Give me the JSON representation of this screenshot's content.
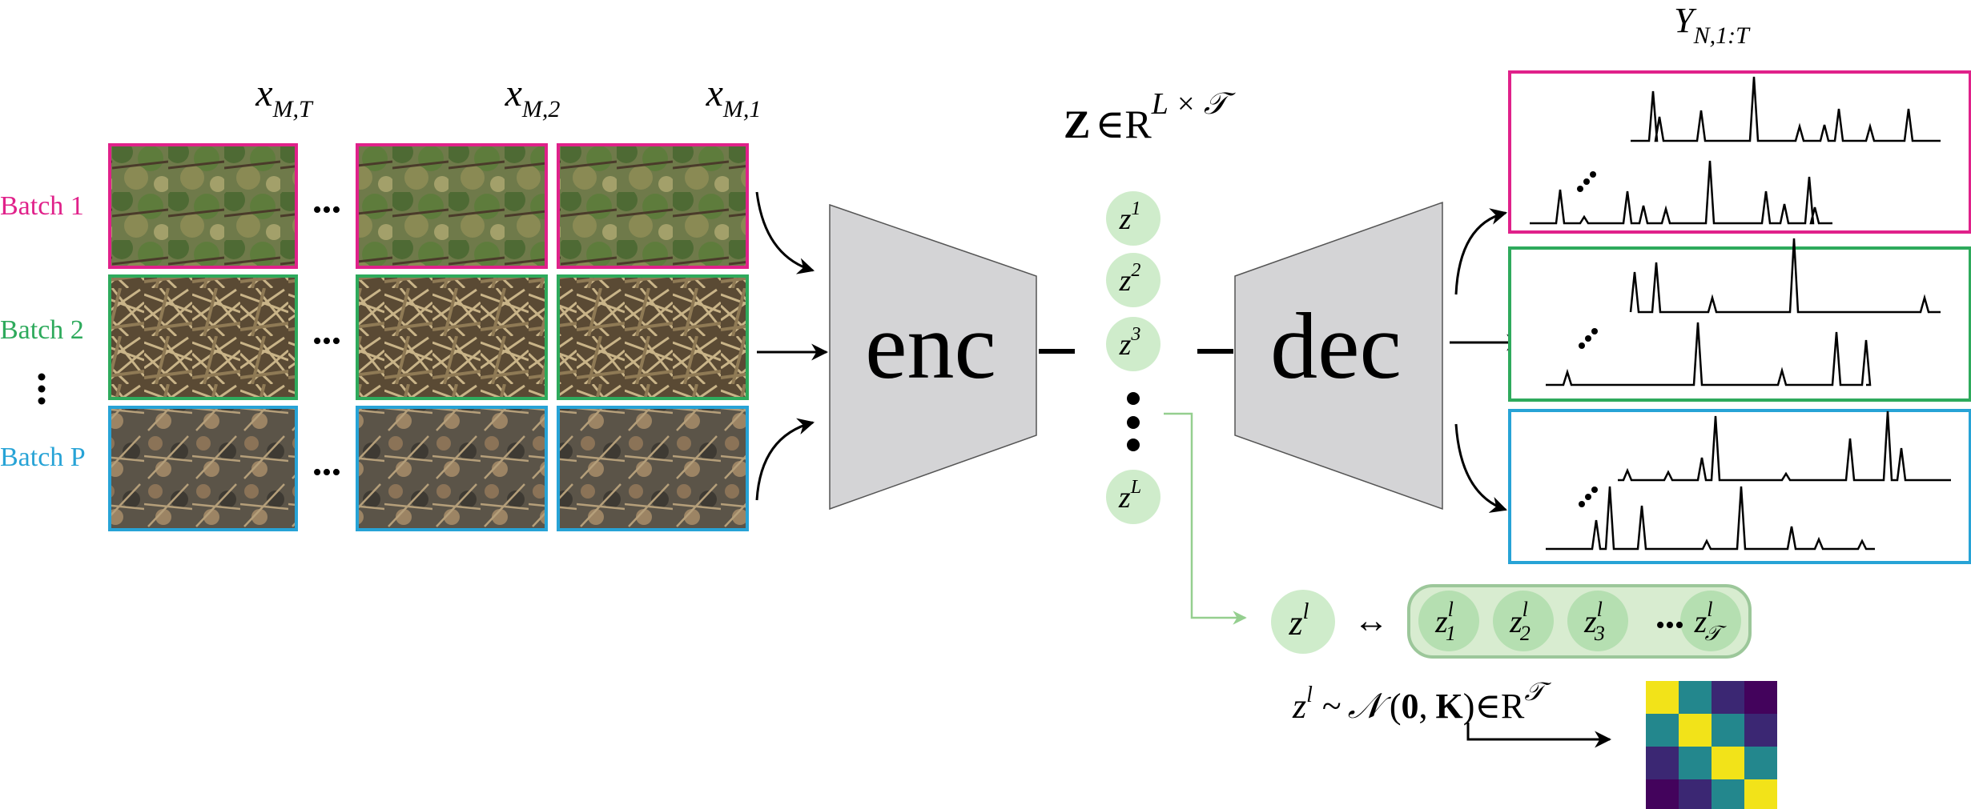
{
  "colors": {
    "batch1": "#e0218a",
    "batch2": "#2eaa5c",
    "batchP": "#27a3d6",
    "latent_fill": "#cfeccb",
    "latent_chain_fill": "#d8ecd0",
    "latent_chain_stroke": "#9cc79a",
    "pointer_line": "#95cf8f",
    "trapezoid_fill": "#d4d4d6",
    "heatmap_yellow": "#f2e319",
    "heatmap_teal": "#23878d",
    "heatmap_purple": "#3b2773",
    "heatmap_dark": "#43035c"
  },
  "icons": {
    "enc_shape": "trapezoid-encoder",
    "dec_shape": "trapezoid-decoder",
    "images": "nature-photo-thumbnails"
  },
  "batches": [
    {
      "label": "Batch 1",
      "color_key": "batch1",
      "texture": "forest"
    },
    {
      "label": "Batch 2",
      "color_key": "batch2",
      "texture": "straw"
    },
    {
      "label": "Batch P",
      "color_key": "batchP",
      "texture": "litter"
    }
  ],
  "columns": [
    {
      "var": "x",
      "sub": "M,T"
    },
    {
      "var": "x",
      "sub": "M,2"
    },
    {
      "var": "x",
      "sub": "M,1"
    }
  ],
  "ellipsis": "•••",
  "encoder": {
    "label": "enc"
  },
  "decoder": {
    "label": "dec"
  },
  "latent_space": {
    "bold": "Z",
    "member": "∈",
    "space": "R",
    "sup": "L × 𝒯"
  },
  "latents": [
    {
      "base": "z",
      "sup": "1"
    },
    {
      "base": "z",
      "sup": "2"
    },
    {
      "base": "z",
      "sup": "3"
    },
    {
      "base": "z",
      "sup": "L"
    }
  ],
  "output_label": {
    "base": "Y",
    "sub": "N,1:T"
  },
  "chain": {
    "head": {
      "base": "z",
      "sup": "l"
    },
    "arrow": "↔",
    "items": [
      {
        "base": "z",
        "sub": "1",
        "sup": "l"
      },
      {
        "base": "z",
        "sub": "2",
        "sup": "l"
      },
      {
        "base": "z",
        "sub": "3",
        "sup": "l"
      },
      {
        "base": "z",
        "sub": "𝒯",
        "sup": "l"
      }
    ]
  },
  "prior": {
    "base": "z",
    "sup": "l",
    "tilde": "~",
    "dist": "𝒩",
    "open": "(",
    "mean": "0",
    "comma": ",",
    "cov": "K",
    "close": ")",
    "member": "∈",
    "space": "R",
    "space_sup": "𝒯"
  },
  "heatmap": [
    [
      "yellow",
      "teal",
      "purple",
      "dark"
    ],
    [
      "teal",
      "yellow",
      "teal",
      "purple"
    ],
    [
      "purple",
      "teal",
      "yellow",
      "teal"
    ],
    [
      "dark",
      "purple",
      "teal",
      "yellow"
    ]
  ]
}
